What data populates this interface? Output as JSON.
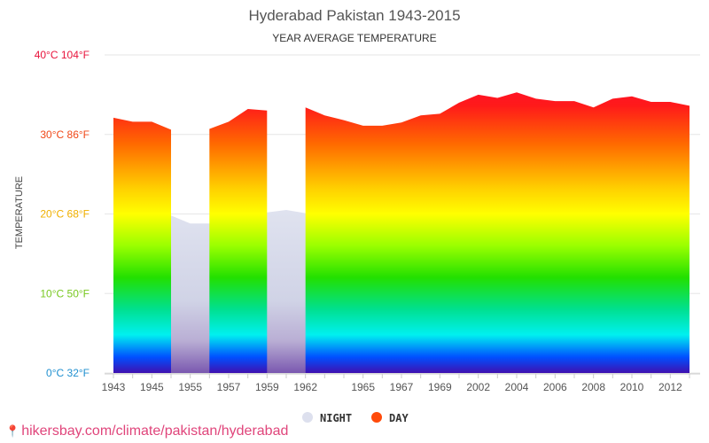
{
  "header": {
    "title": "Hyderabad Pakistan 1943-2015",
    "subtitle": "YEAR AVERAGE TEMPERATURE"
  },
  "footer": {
    "text": "hikersbay.com/climate/pakistan/hyderabad"
  },
  "colors": {
    "night_legend": "#dde0ee",
    "day_legend": "#ff4a0a",
    "footer_text": "#e0457b",
    "tick_40": "#e8143c",
    "tick_30": "#f04818",
    "tick_20": "#f0b000",
    "tick_10": "#78c820",
    "tick_0": "#2090d0"
  },
  "chart_data": {
    "type": "area",
    "title": "Hyderabad Pakistan 1943-2015",
    "subtitle": "YEAR AVERAGE TEMPERATURE",
    "ylabel": "TEMPERATURE",
    "xlabel": "",
    "ylim": [
      0,
      40
    ],
    "yticks": [
      {
        "value": 0,
        "label": "0°C 32°F"
      },
      {
        "value": 10,
        "label": "10°C 50°F"
      },
      {
        "value": 20,
        "label": "20°C 68°F"
      },
      {
        "value": 30,
        "label": "30°C 86°F"
      },
      {
        "value": 40,
        "label": "40°C 104°F"
      }
    ],
    "x_tick_labels": [
      "1943",
      "1945",
      "1955",
      "1957",
      "1959",
      "1962",
      "1965",
      "1967",
      "1969",
      "2002",
      "2004",
      "2006",
      "2008",
      "2010",
      "2012"
    ],
    "points": [
      "1943",
      "1944",
      "1945",
      "1946",
      "1955",
      "1956",
      "1957",
      "1958",
      "1959",
      "1960",
      "1962",
      "1963",
      "1964",
      "1965",
      "1966",
      "1967",
      "1968",
      "1969",
      "2001",
      "2002",
      "2003",
      "2004",
      "2005",
      "2006",
      "2007",
      "2008",
      "2009",
      "2010",
      "2011",
      "2012",
      "2013"
    ],
    "legend": [
      {
        "key": "night",
        "label": "NIGHT"
      },
      {
        "key": "day",
        "label": "DAY"
      }
    ],
    "series": [
      {
        "name": "NIGHT",
        "values": [
          20.0,
          20.4,
          20.3,
          19.8,
          18.8,
          18.8,
          19.1,
          19.6,
          20.2,
          20.5,
          20.1,
          19.6,
          21.0,
          20.1,
          19.9,
          19.2,
          19.9,
          20.4,
          20.5,
          20.5,
          20.8,
          19.3,
          20.6,
          20.7,
          21.0,
          20.9,
          21.6,
          20.0,
          19.9,
          19.8,
          19.8
        ]
      },
      {
        "name": "DAY",
        "values": [
          32.1,
          31.6,
          31.6,
          30.6,
          null,
          30.7,
          31.6,
          33.2,
          33.0,
          null,
          33.4,
          32.4,
          31.8,
          31.1,
          31.1,
          31.5,
          32.4,
          32.6,
          34.0,
          35.0,
          34.6,
          35.3,
          34.5,
          34.2,
          34.2,
          33.4,
          34.5,
          34.8,
          34.1,
          34.1,
          33.6
        ]
      }
    ]
  }
}
